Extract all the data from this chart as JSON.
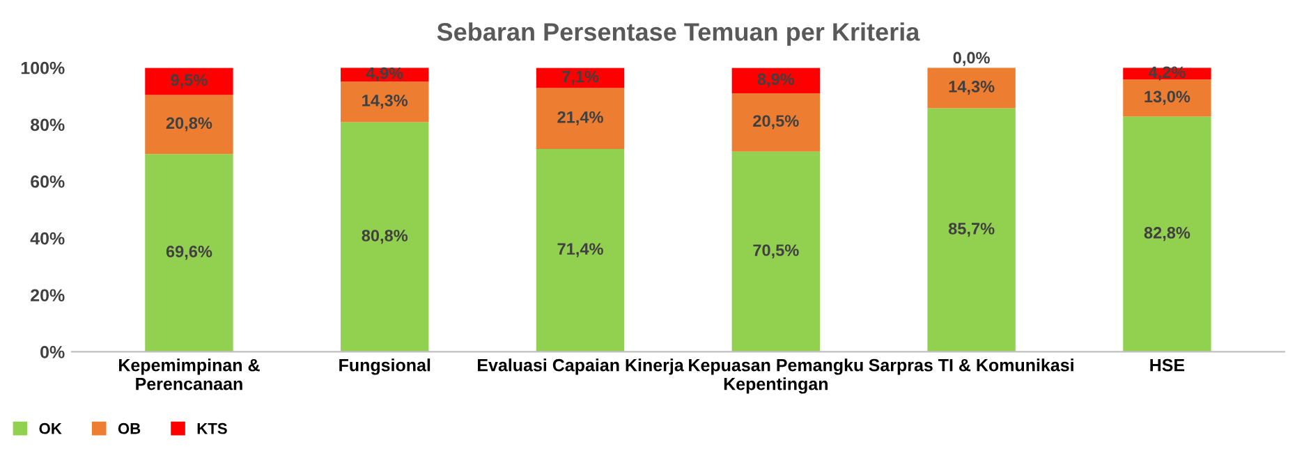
{
  "chart_data": {
    "type": "bar",
    "title": "Sebaran Persentase Temuan per Kriteria",
    "stacked": true,
    "categories": [
      "Kepemimpinan &\nPerencanaan",
      "Fungsional",
      "Evaluasi Capaian Kinerja",
      "Kepuasan Pemangku\nKepentingan",
      "Sarpras TI & Komunikasi",
      "HSE"
    ],
    "series": [
      {
        "name": "OK",
        "color": "#92d050",
        "values": [
          69.6,
          80.8,
          71.4,
          70.5,
          85.7,
          82.8
        ],
        "value_labels": [
          "69,6%",
          "80,8%",
          "71,4%",
          "70,5%",
          "85,7%",
          "82,8%"
        ]
      },
      {
        "name": "OB",
        "color": "#ed7d31",
        "values": [
          20.8,
          14.3,
          21.4,
          20.5,
          14.3,
          13.0
        ],
        "value_labels": [
          "20,8%",
          "14,3%",
          "21,4%",
          "20,5%",
          "14,3%",
          "13,0%"
        ]
      },
      {
        "name": "KTS",
        "color": "#ff0000",
        "values": [
          9.5,
          4.9,
          7.1,
          8.9,
          0.0,
          4.2
        ],
        "value_labels": [
          "9,5%",
          "4,9%",
          "7,1%",
          "8,9%",
          "0,0%",
          "4,2%"
        ]
      }
    ],
    "ylim": [
      0,
      100
    ],
    "yticks": [
      {
        "value": 0,
        "label": "0%"
      },
      {
        "value": 20,
        "label": "20%"
      },
      {
        "value": 40,
        "label": "40%"
      },
      {
        "value": 60,
        "label": "60%"
      },
      {
        "value": 80,
        "label": "80%"
      },
      {
        "value": 100,
        "label": "100%"
      }
    ],
    "grid": false,
    "legend": "bottom left"
  }
}
